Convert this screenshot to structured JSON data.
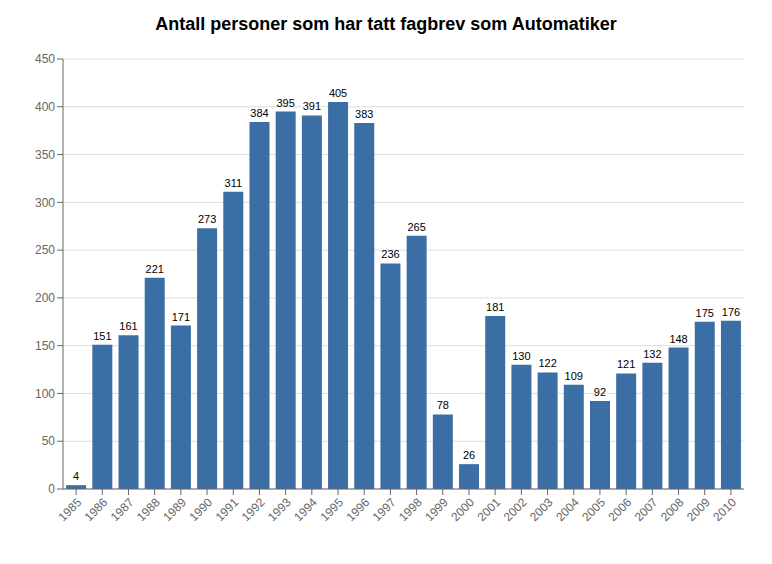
{
  "chart_data": {
    "type": "bar",
    "title": "Antall personer som har tatt fagbrev som Automatiker",
    "categories": [
      "1985",
      "1986",
      "1987",
      "1988",
      "1989",
      "1990",
      "1991",
      "1992",
      "1993",
      "1994",
      "1995",
      "1996",
      "1997",
      "1998",
      "1999",
      "2000",
      "2001",
      "2002",
      "2003",
      "2004",
      "2005",
      "2006",
      "2007",
      "2008",
      "2009",
      "2010"
    ],
    "values": [
      4,
      151,
      161,
      221,
      171,
      273,
      311,
      384,
      395,
      391,
      405,
      383,
      236,
      265,
      78,
      26,
      181,
      130,
      122,
      109,
      92,
      121,
      132,
      148,
      175,
      176
    ],
    "color": "#3A6EA5",
    "ylim": [
      0,
      450
    ],
    "yticks": [
      0,
      50,
      100,
      150,
      200,
      250,
      300,
      350,
      400,
      450
    ],
    "grid": true,
    "data_labels": true
  }
}
